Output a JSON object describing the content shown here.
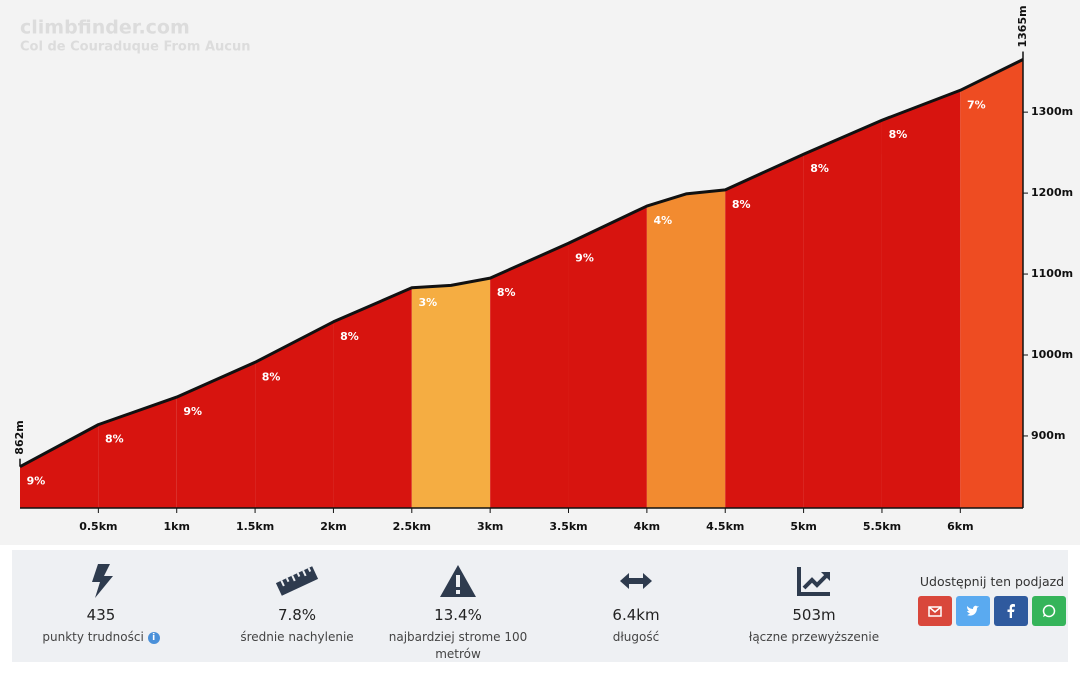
{
  "header": {
    "site": "climbfinder.com",
    "climb": "Col de Couraduque From Aucun"
  },
  "chart_data": {
    "type": "area",
    "x": [
      0,
      0.5,
      1,
      1.5,
      2,
      2.5,
      2.75,
      3,
      3.5,
      4,
      4.25,
      4.5,
      5,
      5.5,
      6,
      6.4
    ],
    "values": [
      862,
      914,
      948,
      991,
      1041,
      1083,
      1086,
      1095,
      1138,
      1184,
      1199,
      1204,
      1248,
      1290,
      1327,
      1365
    ],
    "start_label": "862m",
    "end_label": "1365m",
    "line_color": "#111111",
    "xlim": [
      0,
      6.4
    ],
    "ylim": [
      811,
      1420
    ],
    "xticks": [
      {
        "value": 0.5,
        "label": "0.5km"
      },
      {
        "value": 1,
        "label": "1km"
      },
      {
        "value": 1.5,
        "label": "1.5km"
      },
      {
        "value": 2,
        "label": "2km"
      },
      {
        "value": 2.5,
        "label": "2.5km"
      },
      {
        "value": 3,
        "label": "3km"
      },
      {
        "value": 3.5,
        "label": "3.5km"
      },
      {
        "value": 4,
        "label": "4km"
      },
      {
        "value": 4.5,
        "label": "4.5km"
      },
      {
        "value": 5,
        "label": "5km"
      },
      {
        "value": 5.5,
        "label": "5.5km"
      },
      {
        "value": 6,
        "label": "6km"
      }
    ],
    "yticks": [
      {
        "value": 900,
        "label": "900m"
      },
      {
        "value": 1000,
        "label": "1000m"
      },
      {
        "value": 1100,
        "label": "1100m"
      },
      {
        "value": 1200,
        "label": "1200m"
      },
      {
        "value": 1300,
        "label": "1300m"
      }
    ],
    "segments": {
      "bins": [
        0,
        0.5,
        1,
        1.5,
        2,
        2.5,
        3,
        3.5,
        4,
        4.5,
        5,
        5.5,
        6,
        6.4
      ],
      "values": [
        9,
        8,
        9,
        8,
        8,
        3,
        8,
        9,
        4,
        8,
        8,
        8,
        7
      ],
      "value_labels": [
        "9%",
        "8%",
        "9%",
        "8%",
        "8%",
        "3%",
        "8%",
        "9%",
        "4%",
        "8%",
        "8%",
        "8%",
        "7%"
      ],
      "colors": [
        "#d7140f",
        "#d7140f",
        "#d7140f",
        "#d7140f",
        "#d7140f",
        "#f5ad42",
        "#d7140f",
        "#d7140f",
        "#f28b30",
        "#d7140f",
        "#d7140f",
        "#d7140f",
        "#ee4c22"
      ]
    }
  },
  "stats": [
    {
      "value": "435",
      "label": "punkty trudności"
    },
    {
      "value": "7.8%",
      "label": "średnie nachylenie"
    },
    {
      "value": "13.4%",
      "label": "najbardziej strome 100 metrów"
    },
    {
      "value": "6.4km",
      "label": "długość"
    },
    {
      "value": "503m",
      "label": "łączne przewyższenie"
    }
  ],
  "share": {
    "title": "Udostępnij ten podjazd"
  }
}
